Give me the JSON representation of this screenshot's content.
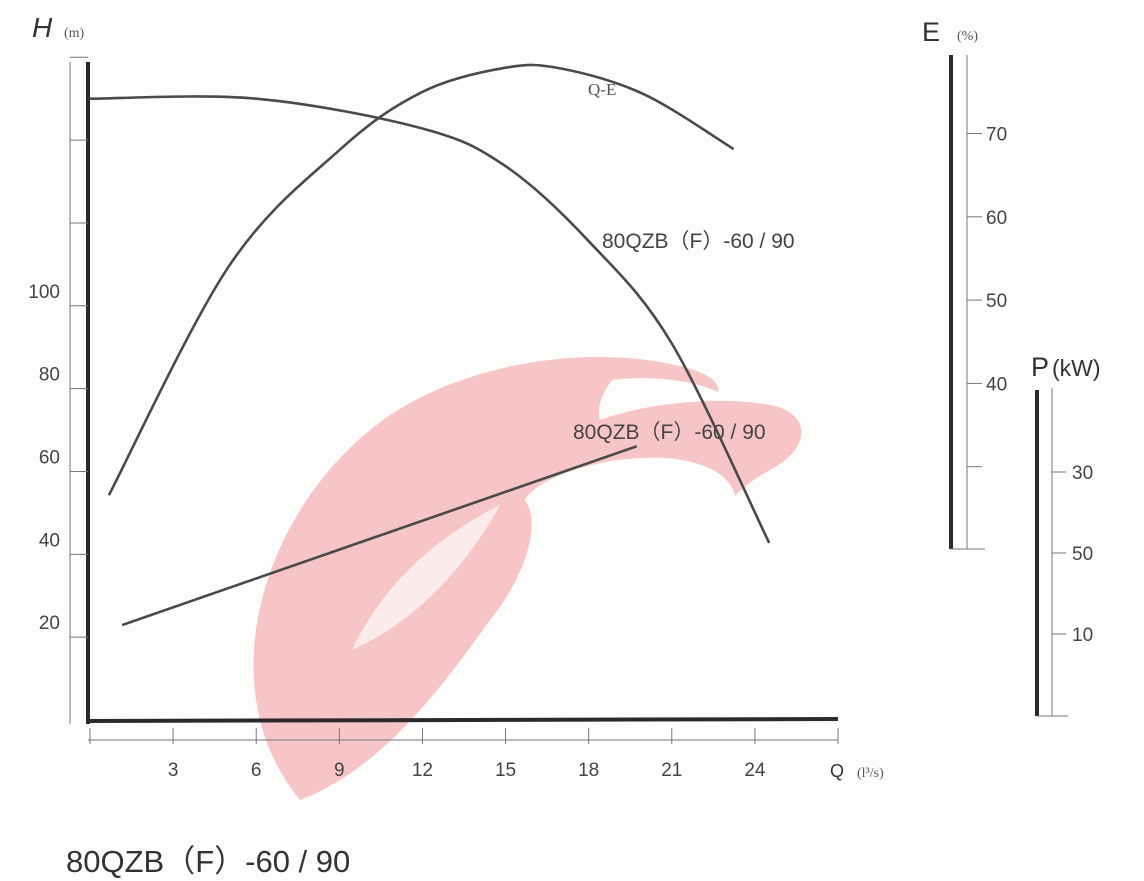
{
  "chart_data": {
    "type": "line",
    "title": "80QZB（F）-60 / 90",
    "x_axis": {
      "label": "Q",
      "unit": "(l³/s)",
      "ticks": [
        3,
        6,
        9,
        12,
        15,
        18,
        21,
        24
      ],
      "range": [
        0,
        27
      ]
    },
    "y_axes": [
      {
        "id": "H",
        "label": "H",
        "unit": "(m)",
        "ticks": [
          20,
          40,
          60,
          80,
          100
        ],
        "range": [
          0,
          160
        ]
      },
      {
        "id": "E",
        "label": "E",
        "unit": "(%)",
        "ticks": [
          40,
          50,
          60,
          70
        ],
        "range": [
          20,
          80
        ]
      },
      {
        "id": "P",
        "label": "P",
        "unit": "(kW)",
        "ticks": [
          "10",
          "50",
          "30"
        ]
      }
    ],
    "series": [
      {
        "name": "80QZB（F）-60 / 90",
        "axis": "H",
        "label_position": "right",
        "x": [
          0,
          6,
          12,
          15,
          18,
          21,
          24.5
        ],
        "y": [
          150,
          150,
          142.8,
          133.7,
          115.6,
          90.9,
          43
        ]
      },
      {
        "name": "Q-E",
        "axis": "E",
        "label_position": "top",
        "x": [
          0.7,
          5,
          9,
          12,
          15,
          17,
          20,
          23.2
        ],
        "y": [
          26.7,
          54,
          68,
          75,
          77.9,
          77.8,
          74.7,
          68.2
        ]
      },
      {
        "name": "80QZB（F）-60 / 90",
        "axis": "H",
        "label_position": "above-line",
        "x": [
          1.2,
          19.7
        ],
        "y": [
          23,
          66
        ]
      }
    ],
    "legend": "none",
    "grid": false,
    "annotations": [
      "Q-E",
      "80QZB（F）-60 / 90",
      "80QZB（F）-60 / 90"
    ]
  },
  "colors": {
    "axis": "#2a2a2a",
    "curve": "#4a4a4a",
    "watermark": "#f4a3a8"
  },
  "watermark": {
    "type": "logo",
    "description": "red stylized swoosh logo"
  }
}
